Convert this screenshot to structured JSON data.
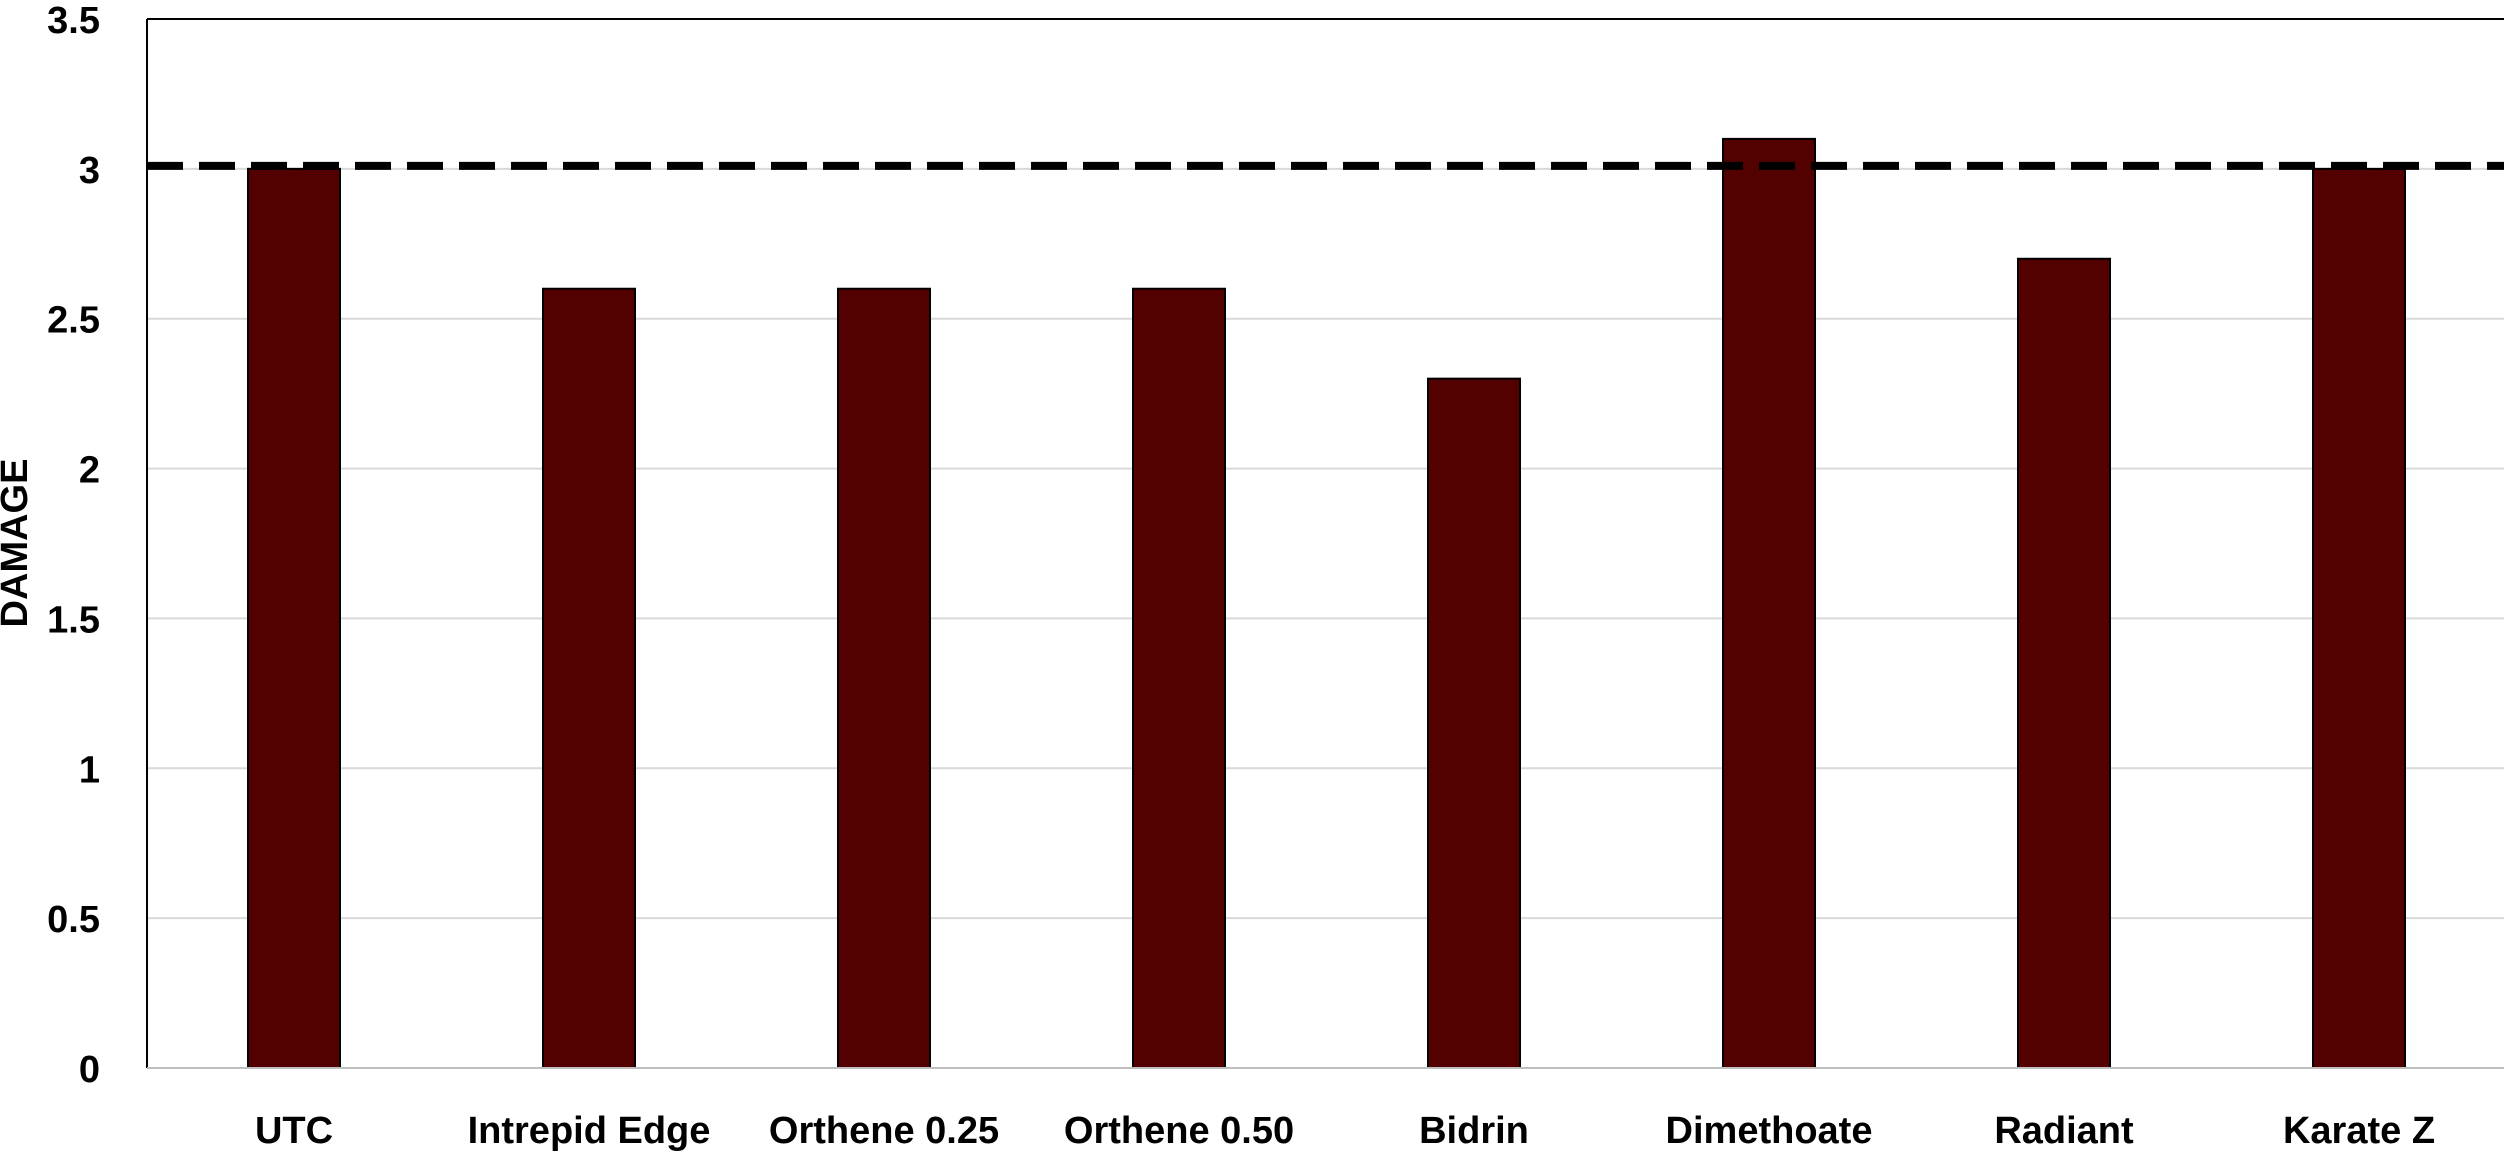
{
  "chart_data": {
    "type": "bar",
    "title": "",
    "xlabel": "",
    "ylabel": "DAMAGE",
    "categories": [
      "UTC",
      "Intrepid Edge",
      "Orthene 0.25",
      "Orthene 0.50",
      "Bidrin",
      "Dimethoate",
      "Radiant",
      "Karate Z"
    ],
    "values": [
      3.0,
      2.6,
      2.6,
      2.6,
      2.3,
      3.1,
      2.7,
      3.0
    ],
    "ylim": [
      0,
      3.5
    ],
    "yticks": [
      0,
      0.5,
      1,
      1.5,
      2,
      2.5,
      3,
      3.5
    ],
    "ytick_labels": [
      "0",
      "0.5",
      "1",
      "1.5",
      "2",
      "2.5",
      "3",
      "3.5"
    ],
    "reference_line": {
      "value": 3.01,
      "style": "dashed",
      "color": "#000000"
    },
    "grid": true,
    "legend": false,
    "colors": {
      "bar": "#520000",
      "bar_edge": "#000000",
      "grid": "#d9d9d9",
      "axis": "#000000"
    }
  }
}
